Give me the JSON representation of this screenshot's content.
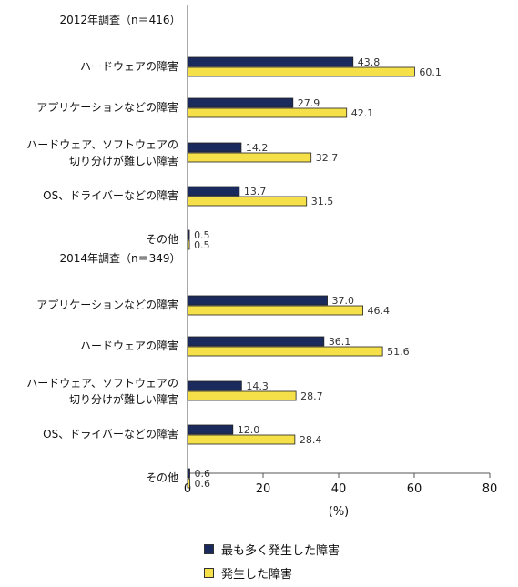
{
  "chart_data": {
    "type": "bar",
    "orientation": "horizontal",
    "groups": [
      {
        "label": "2012年調査（n＝416）",
        "categories": [
          [
            "ハードウェアの障害"
          ],
          [
            "アプリケーションなどの障害"
          ],
          [
            "ハードウェア、ソフトウェアの",
            "切り分けが難しい障害"
          ],
          [
            "OS、ドライバーなどの障害"
          ],
          [
            "その他"
          ]
        ],
        "values": {
          "most": [
            43.8,
            27.9,
            14.2,
            13.7,
            0.5
          ],
          "occurred": [
            60.1,
            42.1,
            32.7,
            31.5,
            0.5
          ]
        }
      },
      {
        "label": "2014年調査（n＝349）",
        "categories": [
          [
            "アプリケーションなどの障害"
          ],
          [
            "ハードウェアの障害"
          ],
          [
            "ハードウェア、ソフトウェアの",
            "切り分けが難しい障害"
          ],
          [
            "OS、ドライバーなどの障害"
          ],
          [
            "その他"
          ]
        ],
        "values": {
          "most": [
            37.0,
            36.1,
            14.3,
            12.0,
            0.6
          ],
          "occurred": [
            46.4,
            51.6,
            28.7,
            28.4,
            0.6
          ]
        }
      }
    ],
    "series": [
      {
        "key": "most",
        "name": "最も多く発生した障害",
        "color": "#1b2a5c"
      },
      {
        "key": "occurred",
        "name": "発生した障害",
        "color": "#f5e04a"
      }
    ],
    "xlabel": "(%)",
    "xlim": [
      0,
      80
    ],
    "xticks": [
      0,
      20,
      40,
      60,
      80
    ],
    "grid": false,
    "legend_position": "bottom"
  }
}
